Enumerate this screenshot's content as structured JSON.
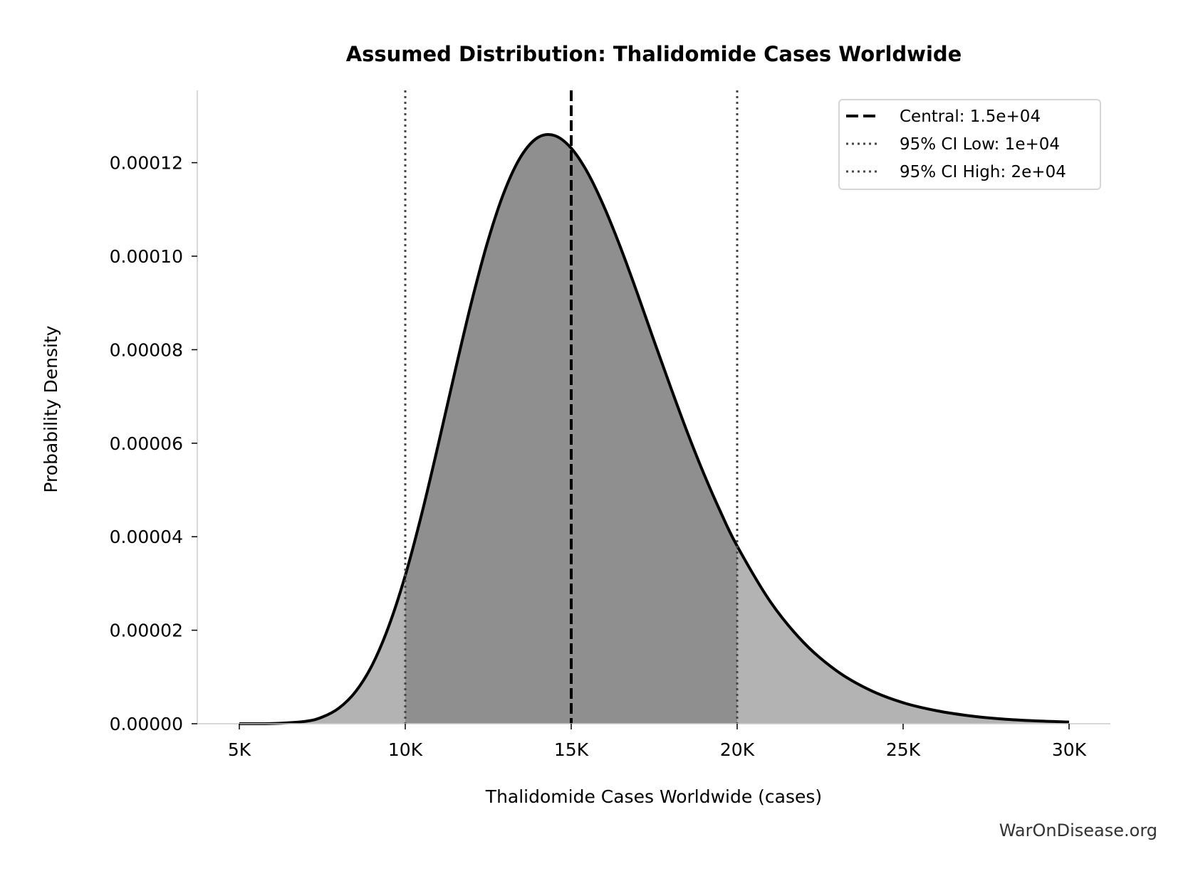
{
  "chart_data": {
    "type": "area",
    "title": "Assumed Distribution: Thalidomide Cases Worldwide",
    "xlabel": "Thalidomide Cases Worldwide (cases)",
    "ylabel": "Probability Density",
    "xlim": [
      3750,
      31250
    ],
    "ylim": [
      0,
      0.000135
    ],
    "xticks": [
      5000,
      10000,
      15000,
      20000,
      25000,
      30000
    ],
    "xtick_labels": [
      "5K",
      "10K",
      "15K",
      "20K",
      "25K",
      "30K"
    ],
    "yticks": [
      0,
      2e-05,
      4e-05,
      6e-05,
      8e-05,
      0.0001,
      0.00012
    ],
    "ytick_labels": [
      "0.00000",
      "0.00002",
      "0.00004",
      "0.00006",
      "0.00008",
      "0.00010",
      "0.00012"
    ],
    "grid": false,
    "legend_position": "top-right",
    "series": {
      "x": [
        5000,
        6000,
        7000,
        7500,
        8000,
        8500,
        9000,
        9500,
        10000,
        10500,
        11000,
        11500,
        12000,
        12500,
        13000,
        13500,
        14000,
        14500,
        15000,
        15500,
        16000,
        16500,
        17000,
        17500,
        18000,
        18500,
        19000,
        19500,
        20000,
        21000,
        22000,
        23000,
        24000,
        25000,
        26000,
        27000,
        28000,
        29000,
        30000
      ],
      "y": [
        1e-09,
        3.8e-08,
        5.2e-07,
        1.43e-06,
        3.34e-06,
        6.84e-06,
        1.25e-05,
        2.08e-05,
        3.17e-05,
        4.5e-05,
        5.99e-05,
        7.54e-05,
        9.03e-05,
        0.0001035,
        0.0001141,
        0.0001215,
        0.0001254,
        0.0001258,
        0.0001231,
        0.0001178,
        0.0001104,
        0.0001016,
        9.19e-05,
        8.18e-05,
        7.19e-05,
        6.23e-05,
        5.34e-05,
        4.53e-05,
        3.8e-05,
        2.61e-05,
        1.74e-05,
        1.13e-05,
        7.2e-06,
        4.5e-06,
        2.8e-06,
        1.7e-06,
        1e-06,
        6e-07,
        3.6e-07
      ]
    },
    "shaded_interval": [
      10000,
      20000
    ],
    "reference_lines": [
      {
        "label": "Central: 1.5e+04",
        "x": 15000,
        "style": "dashed",
        "color": "#000000"
      },
      {
        "label": "95% CI Low: 1e+04",
        "x": 10000,
        "style": "dotted",
        "color": "#444444"
      },
      {
        "label": "95% CI High: 2e+04",
        "x": 20000,
        "style": "dotted",
        "color": "#444444"
      }
    ],
    "colors": {
      "tail_fill": "#b3b3b3",
      "ci_fill": "#8f8f8f",
      "curve": "#000000",
      "spine": "#cccccc"
    }
  },
  "watermark": "WarOnDisease.org"
}
